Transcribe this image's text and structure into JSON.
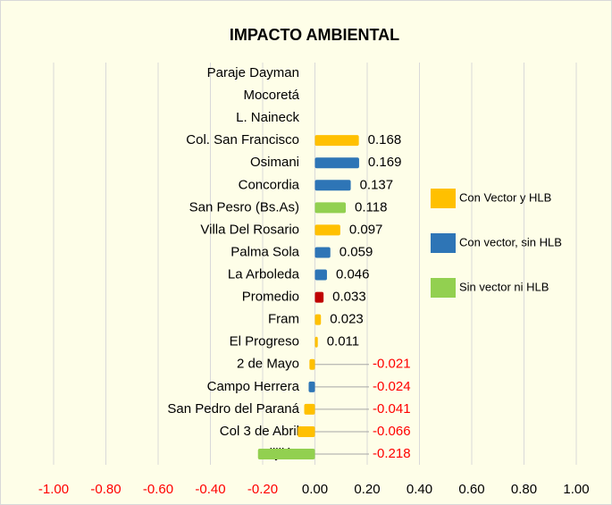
{
  "chart_data": {
    "type": "bar",
    "orientation": "horizontal",
    "title": "IMPACTO AMBIENTAL",
    "categories": [
      "Paraje Dayman",
      "Mocoretá",
      "L. Naineck",
      "Col. San Francisco",
      "Osimani",
      "Concordia",
      "San Pesro (Bs.As)",
      "Villa Del Rosario",
      "Palma Sola",
      "La Arboleda",
      "Promedio",
      "Fram",
      "El Progreso",
      "2 de Mayo",
      "Campo Herrera",
      "San Pedro del Paraná",
      "Col 3 de Abril",
      "Alijilán"
    ],
    "values": [
      null,
      null,
      null,
      0.168,
      0.169,
      0.137,
      0.118,
      0.097,
      0.059,
      0.046,
      0.033,
      0.023,
      0.011,
      -0.021,
      -0.024,
      -0.041,
      -0.066,
      -0.218
    ],
    "colors": [
      null,
      null,
      null,
      "#ffc000",
      "#2e75b6",
      "#2e75b6",
      "#92d050",
      "#ffc000",
      "#2e75b6",
      "#2e75b6",
      "#c00000",
      "#ffc000",
      "#ffc000",
      "#ffc000",
      "#2e75b6",
      "#ffc000",
      "#ffc000",
      "#92d050"
    ],
    "legend": [
      {
        "name": "Con Vector y HLB",
        "color": "#ffc000"
      },
      {
        "name": "Con vector, sin HLB",
        "color": "#2e75b6"
      },
      {
        "name": "Sin vector ni HLB",
        "color": "#92d050"
      }
    ],
    "negative_label_color": "#ff0000",
    "xlim": [
      -1,
      1
    ],
    "xticks": [
      {
        "value": -1,
        "label": "-1.00"
      },
      {
        "value": -0.8,
        "label": "-0.80"
      },
      {
        "value": -0.6,
        "label": "-0.60"
      },
      {
        "value": -0.4,
        "label": "-0.40"
      },
      {
        "value": -0.2,
        "label": "-0.20"
      },
      {
        "value": 0,
        "label": "0.00"
      },
      {
        "value": 0.2,
        "label": "0.20"
      },
      {
        "value": 0.4,
        "label": "0.40"
      },
      {
        "value": 0.6,
        "label": "0.60"
      },
      {
        "value": 0.8,
        "label": "0.80"
      },
      {
        "value": 1,
        "label": "1.00"
      }
    ],
    "grid": true
  }
}
